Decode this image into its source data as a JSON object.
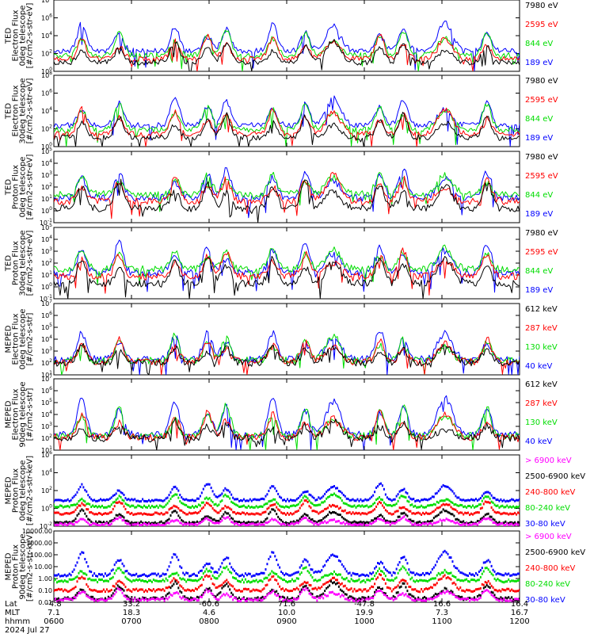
{
  "chart_data": [
    {
      "type": "line",
      "panel": 1,
      "ylabel": [
        "TED",
        "Electron Flux",
        "0deg telescope",
        "[#/cm2-s-str-eV]"
      ],
      "log_y": true,
      "ylim_exp": [
        0,
        8
      ],
      "yticks": [
        "10^0",
        "10^2",
        "10^4",
        "10^6",
        "10^8"
      ],
      "series": [
        {
          "name": "7980 eV",
          "color": "#000000"
        },
        {
          "name": "2595 eV",
          "color": "#ff0000"
        },
        {
          "name": "844 eV",
          "color": "#00dd00"
        },
        {
          "name": "189 eV",
          "color": "#0000ff"
        }
      ],
      "levels": {
        "base": [
          1.0,
          1.4,
          1.8,
          2.3
        ],
        "peak": [
          3.4,
          4.0,
          4.6,
          5.4
        ]
      }
    },
    {
      "type": "line",
      "panel": 2,
      "ylabel": [
        "TED",
        "Electron Flux",
        "30deg telescope",
        "[#/cm2-s-str-eV]"
      ],
      "log_y": true,
      "ylim_exp": [
        0,
        8
      ],
      "yticks": [
        "10^0",
        "10^2",
        "10^4",
        "10^6",
        "10^8"
      ],
      "series": [
        {
          "name": "7980 eV",
          "color": "#000000"
        },
        {
          "name": "2595 eV",
          "color": "#ff0000"
        },
        {
          "name": "844 eV",
          "color": "#00dd00"
        },
        {
          "name": "189 eV",
          "color": "#0000ff"
        }
      ],
      "levels": {
        "base": [
          1.0,
          1.4,
          1.9,
          2.4
        ],
        "peak": [
          3.6,
          4.2,
          4.8,
          5.6
        ]
      }
    },
    {
      "type": "line",
      "panel": 3,
      "ylabel": [
        "TED",
        "Proton Flux",
        "0deg telescope",
        "[#/cm2-s-str-eV]"
      ],
      "log_y": true,
      "ylim_exp": [
        -1,
        5
      ],
      "yticks": [
        "10^-1",
        "10^0",
        "10^1",
        "10^2",
        "10^3",
        "10^4",
        "10^5"
      ],
      "series": [
        {
          "name": "7980 eV",
          "color": "#000000"
        },
        {
          "name": "2595 eV",
          "color": "#ff0000"
        },
        {
          "name": "844 eV",
          "color": "#00dd00"
        },
        {
          "name": "189 eV",
          "color": "#0000ff"
        }
      ],
      "levels": {
        "base": [
          0.2,
          0.8,
          1.4,
          1.1
        ],
        "peak": [
          2.6,
          3.0,
          3.2,
          3.6
        ]
      }
    },
    {
      "type": "line",
      "panel": 4,
      "ylabel": [
        "TED",
        "Proton Flux",
        "30deg telescope",
        "[#/cm2-s-str-eV]"
      ],
      "log_y": true,
      "ylim_exp": [
        -1,
        5
      ],
      "yticks": [
        "10^-1",
        "10^0",
        "10^1",
        "10^2",
        "10^3",
        "10^4",
        "10^5"
      ],
      "series": [
        {
          "name": "7980 eV",
          "color": "#000000"
        },
        {
          "name": "2595 eV",
          "color": "#ff0000"
        },
        {
          "name": "844 eV",
          "color": "#00dd00"
        },
        {
          "name": "189 eV",
          "color": "#0000ff"
        }
      ],
      "levels": {
        "base": [
          0.3,
          0.9,
          1.5,
          1.2
        ],
        "peak": [
          2.6,
          3.0,
          3.3,
          3.7
        ]
      }
    },
    {
      "type": "line",
      "panel": 5,
      "ylabel": [
        "MEPED",
        "Electron Flux",
        "0deg telescope",
        "[#/cm2-s-str]"
      ],
      "log_y": true,
      "ylim_exp": [
        1,
        7
      ],
      "yticks": [
        "10^1",
        "10^2",
        "10^3",
        "10^4",
        "10^5",
        "10^6",
        "10^7"
      ],
      "series": [
        {
          "name": "612 keV",
          "color": "#000000"
        },
        {
          "name": "287 keV",
          "color": "#ff0000"
        },
        {
          "name": "130 keV",
          "color": "#00dd00"
        },
        {
          "name": "40 keV",
          "color": "#0000ff"
        }
      ],
      "levels": {
        "base": [
          2.0,
          2.1,
          2.2,
          2.3
        ],
        "peak": [
          3.6,
          4.0,
          4.3,
          4.8
        ]
      }
    },
    {
      "type": "line",
      "panel": 6,
      "ylabel": [
        "MEPED",
        "Electron Flux",
        "90deg telescope",
        "[#/cm2-s-str]"
      ],
      "log_y": true,
      "ylim_exp": [
        1,
        7
      ],
      "yticks": [
        "10^1",
        "10^2",
        "10^3",
        "10^4",
        "10^5",
        "10^6",
        "10^7"
      ],
      "series": [
        {
          "name": "612 keV",
          "color": "#000000"
        },
        {
          "name": "287 keV",
          "color": "#ff0000"
        },
        {
          "name": "130 keV",
          "color": "#00dd00"
        },
        {
          "name": "40 keV",
          "color": "#0000ff"
        }
      ],
      "levels": {
        "base": [
          2.0,
          2.1,
          2.2,
          2.3
        ],
        "peak": [
          3.4,
          4.2,
          4.8,
          5.4
        ]
      }
    },
    {
      "type": "scatter",
      "panel": 7,
      "ylabel": [
        "MEPED",
        "Proton Flux",
        "0deg telescope",
        "[#/cm2-s-str-keV]"
      ],
      "log_y": true,
      "ylim_exp": [
        -2,
        6
      ],
      "yticks": [
        "10^-2",
        "10^0",
        "10^2",
        "10^4",
        "10^6"
      ],
      "series": [
        {
          "name": "> 6900 keV",
          "color": "#ff00ff"
        },
        {
          "name": "2500-6900 keV",
          "color": "#000000"
        },
        {
          "name": "240-800 keV",
          "color": "#ff0000"
        },
        {
          "name": "80-240 keV",
          "color": "#00dd00"
        },
        {
          "name": "30-80 keV",
          "color": "#0000ff"
        }
      ],
      "levels": {
        "base": [
          -1.8,
          -1.6,
          -0.6,
          0.2,
          0.9
        ],
        "peak": [
          -1.0,
          -0.2,
          0.8,
          1.6,
          2.8
        ]
      }
    },
    {
      "type": "scatter",
      "panel": 8,
      "ylabel": [
        "MEPED",
        "Proton Flux",
        "90deg telescope",
        "[#/cm2-s-str-keV]"
      ],
      "log_y": true,
      "ylim_exp": [
        -2,
        4
      ],
      "yticks": [
        "0.01",
        "0.10",
        "1.00",
        "10.00",
        "100.00",
        "1000.00",
        "10000.00"
      ],
      "series": [
        {
          "name": "> 6900 keV",
          "color": "#ff00ff"
        },
        {
          "name": "2500-6900 keV",
          "color": "#000000"
        },
        {
          "name": "240-800 keV",
          "color": "#ff0000"
        },
        {
          "name": "80-240 keV",
          "color": "#00dd00"
        },
        {
          "name": "30-80 keV",
          "color": "#0000ff"
        }
      ],
      "levels": {
        "base": [
          -1.8,
          -1.7,
          -1.0,
          -0.2,
          0.3
        ],
        "peak": [
          -0.9,
          -0.3,
          0.3,
          1.0,
          2.2
        ]
      }
    }
  ],
  "x_axis": {
    "row_labels": [
      "Lat",
      "MLT",
      "hhmm"
    ],
    "ticks": [
      {
        "lat": "-4.8",
        "mlt": "7.1",
        "hhmm": "0600"
      },
      {
        "lat": "33.2",
        "mlt": "18.3",
        "hhmm": "0700"
      },
      {
        "lat": "-60.6",
        "mlt": "4.6",
        "hhmm": "0800"
      },
      {
        "lat": "71.6",
        "mlt": "10.0",
        "hhmm": "0900"
      },
      {
        "lat": "-47.8",
        "mlt": "19.9",
        "hhmm": "1000"
      },
      {
        "lat": "16.6",
        "mlt": "7.3",
        "hhmm": "1100"
      },
      {
        "lat": "16.4",
        "mlt": "16.7",
        "hhmm": "1200"
      }
    ],
    "date": "2024 Jul 27"
  },
  "events": {
    "passes": [
      0.06,
      0.14,
      0.26,
      0.33,
      0.37,
      0.47,
      0.54,
      0.6,
      0.7,
      0.75,
      0.84,
      0.93
    ],
    "smooth_passes": [
      0.35,
      0.6,
      0.84
    ]
  }
}
